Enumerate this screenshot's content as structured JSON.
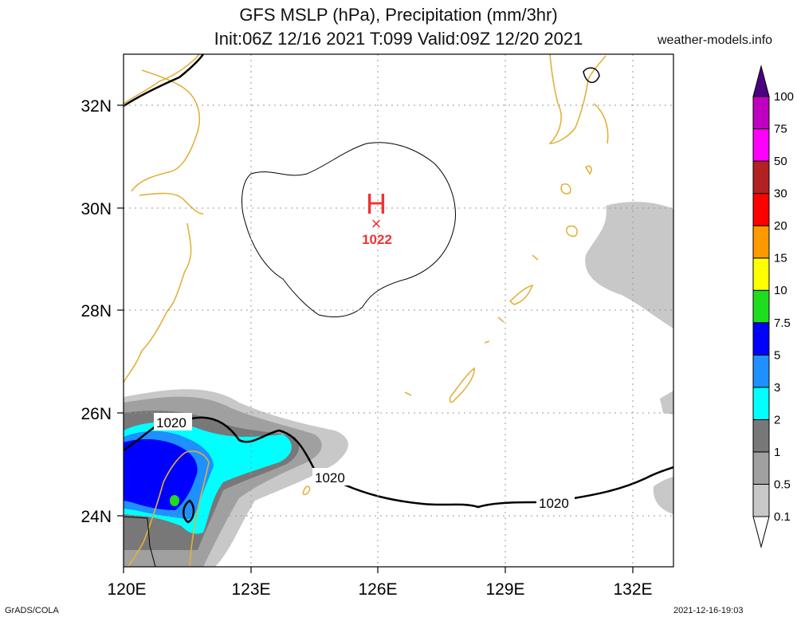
{
  "header": {
    "title_line1": "GFS MSLP (hPa), Precipitation (mm/3hr)",
    "title_line2": "Init:06Z 12/16 2021 T:099 Valid:09Z 12/20 2021",
    "site": "weather-models.info"
  },
  "footer": {
    "left": "GrADS/COLA",
    "right": "2021-12-16-19:03"
  },
  "map": {
    "lat_labels": [
      "32N",
      "30N",
      "28N",
      "26N",
      "24N"
    ],
    "lon_labels": [
      "120E",
      "123E",
      "126E",
      "129E",
      "132E"
    ],
    "high": {
      "symbol": "H",
      "marker": "×",
      "pressure": "1022"
    },
    "isobar_labels": [
      "1020",
      "1020",
      "1020"
    ],
    "colors": {
      "coastline": "#e2b13c",
      "isobar": "#000000",
      "high_marker": "#ee3333"
    }
  },
  "legend": {
    "levels": [
      "0.1",
      "0.5",
      "1",
      "2",
      "3",
      "5",
      "7.5",
      "10",
      "15",
      "20",
      "30",
      "50",
      "75",
      "100"
    ],
    "colors": [
      "#c8c8c8",
      "#a0a0a0",
      "#787878",
      "#00ffff",
      "#1e90ff",
      "#0000ff",
      "#1fdc1f",
      "#ffff00",
      "#ff9900",
      "#ff0000",
      "#b22222",
      "#ff00ff",
      "#c000c0",
      "#8b008b",
      "#4b0082"
    ]
  }
}
